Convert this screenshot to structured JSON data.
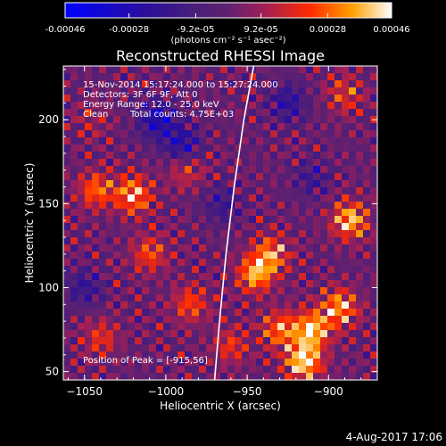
{
  "chart_data": {
    "type": "heatmap",
    "title": "Reconstructed RHESSI Image",
    "xlabel": "Heliocentric X (arcsec)",
    "ylabel": "Heliocentric Y (arcsec)",
    "xlim": [
      -1063,
      -870
    ],
    "ylim": [
      45,
      232
    ],
    "x_ticks": [
      -1050,
      -1000,
      -950,
      -900
    ],
    "y_ticks": [
      50,
      100,
      150,
      200
    ],
    "colorbar": {
      "ticks": [
        "-0.00046",
        "-0.00028",
        "-9.2e-05",
        "9.2e-05",
        "0.00028",
        "0.00046"
      ],
      "tick_values": [
        -0.00046,
        -0.00028,
        -9.2e-05,
        9.2e-05,
        0.00028,
        0.00046
      ],
      "range": [
        -0.00046,
        0.00046
      ],
      "units": "(photons cm⁻² s⁻¹ asec⁻²)"
    },
    "annotations": [
      "15-Nov-2014 15:17:24.000 to 15:27:24.000",
      "Detectors: 3F 6F 9F, Att 0",
      "Energy Range: 12.0 - 25.0 keV",
      "Clean",
      "Total counts: 4.75E+03"
    ],
    "peak_label": "Position of Peak = [-915,56]",
    "limb_curve": [
      [
        -946,
        232
      ],
      [
        -952,
        200
      ],
      [
        -958,
        160
      ],
      [
        -963,
        120
      ],
      [
        -967,
        80
      ],
      [
        -970,
        45
      ]
    ],
    "hot_spots": [
      {
        "x": -915,
        "y": 56,
        "v": 0.00046
      },
      {
        "x": -910,
        "y": 75,
        "v": 0.0004
      },
      {
        "x": -930,
        "y": 75,
        "v": 0.0003
      },
      {
        "x": -893,
        "y": 88,
        "v": 0.00035
      },
      {
        "x": -887,
        "y": 140,
        "v": 0.00038
      },
      {
        "x": -945,
        "y": 108,
        "v": 0.00036
      },
      {
        "x": -935,
        "y": 120,
        "v": 0.0003
      },
      {
        "x": -1020,
        "y": 155,
        "v": 0.00036
      },
      {
        "x": -1043,
        "y": 158,
        "v": 0.00028
      },
      {
        "x": -1010,
        "y": 120,
        "v": 0.00024
      },
      {
        "x": -985,
        "y": 90,
        "v": 0.00024
      },
      {
        "x": -1040,
        "y": 70,
        "v": 0.0002
      },
      {
        "x": -988,
        "y": 170,
        "v": 0.00018
      },
      {
        "x": -890,
        "y": 215,
        "v": 0.0002
      },
      {
        "x": -960,
        "y": 65,
        "v": 0.0002
      },
      {
        "x": -1045,
        "y": 200,
        "v": 0.0001
      }
    ],
    "cold_spots": [
      {
        "x": -1005,
        "y": 200,
        "v": -0.0003
      },
      {
        "x": -990,
        "y": 185,
        "v": -0.00026
      },
      {
        "x": -925,
        "y": 210,
        "v": -0.00022
      },
      {
        "x": -1050,
        "y": 100,
        "v": -0.00018
      },
      {
        "x": -965,
        "y": 150,
        "v": -0.00016
      },
      {
        "x": -910,
        "y": 165,
        "v": -0.00014
      }
    ]
  },
  "date_stamp": "4-Aug-2017 17:06"
}
